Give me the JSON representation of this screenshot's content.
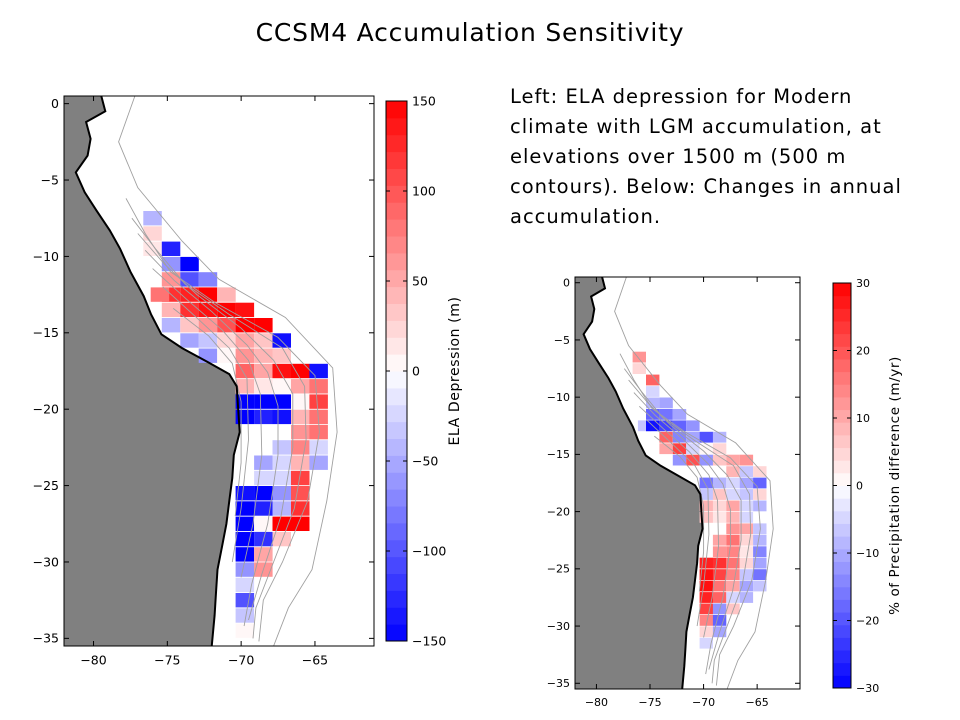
{
  "title": "CCSM4 Accumulation Sensitivity",
  "caption": "Left: ELA depression for Modern climate with LGM accumulation, at elevations over 1500 m (500 m contours). Below: Changes in annual accumulation.",
  "colors": {
    "land": "#808080",
    "ocean": "#ffffff",
    "contour": "#a0a0a0",
    "coast": "#000000",
    "high": "#ff0000",
    "mid": "#ffffff",
    "low": "#0000ff"
  },
  "chart_data": [
    {
      "type": "heatmap",
      "title": "",
      "xlabel": "",
      "ylabel": "",
      "colorbar_label": "ELA Depression (m)",
      "xlim": [
        -82,
        -61
      ],
      "ylim": [
        -35.5,
        0.5
      ],
      "xticks": [
        -80,
        -75,
        -70,
        -65
      ],
      "yticks": [
        0,
        -5,
        -10,
        -15,
        -20,
        -25,
        -30,
        -35
      ],
      "clim": [
        -150,
        150
      ],
      "colorbar_ticks": [
        150,
        100,
        50,
        0,
        -50,
        -100,
        -150
      ],
      "colorbar_tick_labels": [
        "150",
        "100",
        "50",
        "0",
        "−50",
        "−100",
        "−150"
      ],
      "cell_size_deg": [
        1.25,
        0.94
      ],
      "cells": [
        {
          "lon": -76.0,
          "lat": -7.5,
          "v": -40
        },
        {
          "lon": -76.0,
          "lat": -8.5,
          "v": 20
        },
        {
          "lon": -76.0,
          "lat": -9.5,
          "v": 15
        },
        {
          "lon": -74.75,
          "lat": -9.5,
          "v": -130
        },
        {
          "lon": -74.75,
          "lat": -10.5,
          "v": -60
        },
        {
          "lon": -74.75,
          "lat": -11.5,
          "v": 60
        },
        {
          "lon": -73.5,
          "lat": -10.5,
          "v": -150
        },
        {
          "lon": -73.5,
          "lat": -11.5,
          "v": -100
        },
        {
          "lon": -74.75,
          "lat": -12.5,
          "v": 120
        },
        {
          "lon": -73.5,
          "lat": -12.5,
          "v": 130
        },
        {
          "lon": -72.25,
          "lat": -12.5,
          "v": 150
        },
        {
          "lon": -72.25,
          "lat": -11.5,
          "v": -70
        },
        {
          "lon": -71.0,
          "lat": -12.5,
          "v": 40
        },
        {
          "lon": -75.5,
          "lat": -12.5,
          "v": 80
        },
        {
          "lon": -74.75,
          "lat": -13.5,
          "v": 40
        },
        {
          "lon": -73.5,
          "lat": -13.5,
          "v": 120
        },
        {
          "lon": -72.25,
          "lat": -13.5,
          "v": 140
        },
        {
          "lon": -71.0,
          "lat": -13.5,
          "v": 150
        },
        {
          "lon": -69.75,
          "lat": -13.5,
          "v": 140
        },
        {
          "lon": -74.75,
          "lat": -14.5,
          "v": -40
        },
        {
          "lon": -73.5,
          "lat": -14.5,
          "v": 30
        },
        {
          "lon": -72.25,
          "lat": -14.5,
          "v": 60
        },
        {
          "lon": -71.0,
          "lat": -14.5,
          "v": 100
        },
        {
          "lon": -69.75,
          "lat": -14.5,
          "v": 150
        },
        {
          "lon": -68.5,
          "lat": -14.5,
          "v": 150
        },
        {
          "lon": -73.5,
          "lat": -15.5,
          "v": -50
        },
        {
          "lon": -72.25,
          "lat": -15.5,
          "v": -30
        },
        {
          "lon": -71.0,
          "lat": -15.5,
          "v": 20
        },
        {
          "lon": -69.75,
          "lat": -15.5,
          "v": 50
        },
        {
          "lon": -68.5,
          "lat": -15.5,
          "v": 30
        },
        {
          "lon": -67.25,
          "lat": -15.5,
          "v": -140
        },
        {
          "lon": -72.25,
          "lat": -16.5,
          "v": -60
        },
        {
          "lon": -71.0,
          "lat": -16.5,
          "v": 0
        },
        {
          "lon": -69.75,
          "lat": -16.5,
          "v": 60
        },
        {
          "lon": -68.5,
          "lat": -16.5,
          "v": 40
        },
        {
          "lon": -67.25,
          "lat": -16.5,
          "v": 30
        },
        {
          "lon": -69.75,
          "lat": -17.5,
          "v": 90
        },
        {
          "lon": -68.5,
          "lat": -17.5,
          "v": 50
        },
        {
          "lon": -67.25,
          "lat": -17.5,
          "v": 140
        },
        {
          "lon": -66.0,
          "lat": -17.5,
          "v": 150
        },
        {
          "lon": -64.75,
          "lat": -17.5,
          "v": -140
        },
        {
          "lon": -69.75,
          "lat": -18.5,
          "v": 40
        },
        {
          "lon": -68.5,
          "lat": -18.5,
          "v": 10
        },
        {
          "lon": -67.25,
          "lat": -18.5,
          "v": 0
        },
        {
          "lon": -66.0,
          "lat": -18.5,
          "v": 50
        },
        {
          "lon": -64.75,
          "lat": -18.5,
          "v": 80
        },
        {
          "lon": -69.75,
          "lat": -19.5,
          "v": -150
        },
        {
          "lon": -68.5,
          "lat": -19.5,
          "v": -150
        },
        {
          "lon": -67.25,
          "lat": -19.5,
          "v": -150
        },
        {
          "lon": -66.0,
          "lat": -19.5,
          "v": 0
        },
        {
          "lon": -64.75,
          "lat": -19.5,
          "v": 110
        },
        {
          "lon": -69.75,
          "lat": -20.5,
          "v": -150
        },
        {
          "lon": -68.5,
          "lat": -20.5,
          "v": -130
        },
        {
          "lon": -67.25,
          "lat": -20.5,
          "v": -140
        },
        {
          "lon": -66.0,
          "lat": -20.5,
          "v": 40
        },
        {
          "lon": -64.75,
          "lat": -20.5,
          "v": 80
        },
        {
          "lon": -66.0,
          "lat": -21.5,
          "v": 60
        },
        {
          "lon": -64.75,
          "lat": -21.5,
          "v": 80
        },
        {
          "lon": -67.25,
          "lat": -22.5,
          "v": -30
        },
        {
          "lon": -66.0,
          "lat": -22.5,
          "v": 70
        },
        {
          "lon": -64.75,
          "lat": -22.5,
          "v": -20
        },
        {
          "lon": -68.5,
          "lat": -23.5,
          "v": -50
        },
        {
          "lon": -67.25,
          "lat": -23.5,
          "v": -20
        },
        {
          "lon": -66.0,
          "lat": -23.5,
          "v": 40
        },
        {
          "lon": -64.75,
          "lat": -23.5,
          "v": -50
        },
        {
          "lon": -68.5,
          "lat": -24.5,
          "v": -20
        },
        {
          "lon": -67.25,
          "lat": -24.5,
          "v": -20
        },
        {
          "lon": -66.0,
          "lat": -24.5,
          "v": 110
        },
        {
          "lon": -69.75,
          "lat": -25.5,
          "v": -140
        },
        {
          "lon": -68.5,
          "lat": -25.5,
          "v": -150
        },
        {
          "lon": -67.25,
          "lat": -25.5,
          "v": -60
        },
        {
          "lon": -66.0,
          "lat": -25.5,
          "v": 100
        },
        {
          "lon": -69.75,
          "lat": -26.5,
          "v": -150
        },
        {
          "lon": -68.5,
          "lat": -26.5,
          "v": -130
        },
        {
          "lon": -67.25,
          "lat": -26.5,
          "v": -40
        },
        {
          "lon": -66.0,
          "lat": -26.5,
          "v": 120
        },
        {
          "lon": -69.75,
          "lat": -27.5,
          "v": -150
        },
        {
          "lon": -68.5,
          "lat": -27.5,
          "v": 0
        },
        {
          "lon": -67.25,
          "lat": -27.5,
          "v": 150
        },
        {
          "lon": -66.0,
          "lat": -27.5,
          "v": 150
        },
        {
          "lon": -69.75,
          "lat": -28.5,
          "v": -150
        },
        {
          "lon": -68.5,
          "lat": -28.5,
          "v": -120
        },
        {
          "lon": -67.25,
          "lat": -28.5,
          "v": 30
        },
        {
          "lon": -69.75,
          "lat": -29.5,
          "v": -150
        },
        {
          "lon": -68.5,
          "lat": -29.5,
          "v": 50
        },
        {
          "lon": -69.75,
          "lat": -30.5,
          "v": -60
        },
        {
          "lon": -68.5,
          "lat": -30.5,
          "v": 60
        },
        {
          "lon": -69.75,
          "lat": -31.5,
          "v": -20
        },
        {
          "lon": -69.75,
          "lat": -32.5,
          "v": -100
        },
        {
          "lon": -69.75,
          "lat": -33.5,
          "v": -30
        },
        {
          "lon": -69.75,
          "lat": -34.5,
          "v": 0
        }
      ]
    },
    {
      "type": "heatmap",
      "title": "",
      "xlabel": "",
      "ylabel": "",
      "colorbar_label": "% of Precipitation difference (m/yr)",
      "xlim": [
        -82,
        -61
      ],
      "ylim": [
        -35.5,
        0.5
      ],
      "xticks": [
        -80,
        -75,
        -70,
        -65
      ],
      "yticks": [
        0,
        -5,
        -10,
        -15,
        -20,
        -25,
        -30,
        -35
      ],
      "clim": [
        -30,
        30
      ],
      "colorbar_ticks": [
        30,
        20,
        10,
        0,
        -10,
        -20,
        -30
      ],
      "colorbar_tick_labels": [
        "30",
        "20",
        "10",
        "0",
        "−10",
        "−20",
        "−30"
      ],
      "cell_size_deg": [
        1.25,
        0.94
      ],
      "cells": [
        {
          "lon": -76.0,
          "lat": -6.5,
          "v": 12
        },
        {
          "lon": -76.0,
          "lat": -7.5,
          "v": 4
        },
        {
          "lon": -74.75,
          "lat": -8.5,
          "v": 18
        },
        {
          "lon": -74.75,
          "lat": -9.5,
          "v": -4
        },
        {
          "lon": -73.5,
          "lat": -10.5,
          "v": -10
        },
        {
          "lon": -74.75,
          "lat": -10.5,
          "v": -8
        },
        {
          "lon": -74.75,
          "lat": -11.5,
          "v": -18
        },
        {
          "lon": -73.5,
          "lat": -11.5,
          "v": -16
        },
        {
          "lon": -72.25,
          "lat": -11.5,
          "v": -10
        },
        {
          "lon": -75.5,
          "lat": -12.5,
          "v": -6
        },
        {
          "lon": -74.75,
          "lat": -12.5,
          "v": -28
        },
        {
          "lon": -73.5,
          "lat": -12.5,
          "v": -22
        },
        {
          "lon": -72.25,
          "lat": -12.5,
          "v": -18
        },
        {
          "lon": -71.0,
          "lat": -12.5,
          "v": -12
        },
        {
          "lon": -73.5,
          "lat": -13.5,
          "v": 18
        },
        {
          "lon": -72.25,
          "lat": -13.5,
          "v": -14
        },
        {
          "lon": -71.0,
          "lat": -13.5,
          "v": -10
        },
        {
          "lon": -69.75,
          "lat": -13.5,
          "v": -20
        },
        {
          "lon": -68.5,
          "lat": -13.5,
          "v": -8
        },
        {
          "lon": -73.5,
          "lat": -14.5,
          "v": 10
        },
        {
          "lon": -72.25,
          "lat": -14.5,
          "v": 22
        },
        {
          "lon": -71.0,
          "lat": -14.5,
          "v": -4
        },
        {
          "lon": -69.75,
          "lat": -14.5,
          "v": 0
        },
        {
          "lon": -68.5,
          "lat": -14.5,
          "v": 4
        },
        {
          "lon": -72.25,
          "lat": -15.5,
          "v": -12
        },
        {
          "lon": -71.0,
          "lat": -15.5,
          "v": 20
        },
        {
          "lon": -69.75,
          "lat": -15.5,
          "v": -12
        },
        {
          "lon": -68.5,
          "lat": -15.5,
          "v": 6
        },
        {
          "lon": -67.25,
          "lat": -15.5,
          "v": 10
        },
        {
          "lon": -66.0,
          "lat": -15.5,
          "v": 12
        },
        {
          "lon": -67.25,
          "lat": -16.5,
          "v": 8
        },
        {
          "lon": -66.0,
          "lat": -16.5,
          "v": -6
        },
        {
          "lon": -64.75,
          "lat": -16.5,
          "v": 4
        },
        {
          "lon": -69.75,
          "lat": -17.5,
          "v": -16
        },
        {
          "lon": -68.5,
          "lat": -17.5,
          "v": -8
        },
        {
          "lon": -67.25,
          "lat": -17.5,
          "v": -4
        },
        {
          "lon": -66.0,
          "lat": -17.5,
          "v": -10
        },
        {
          "lon": -64.75,
          "lat": -17.5,
          "v": -18
        },
        {
          "lon": -69.75,
          "lat": -18.5,
          "v": -6
        },
        {
          "lon": -68.5,
          "lat": -18.5,
          "v": 6
        },
        {
          "lon": -67.25,
          "lat": -18.5,
          "v": -4
        },
        {
          "lon": -66.0,
          "lat": -18.5,
          "v": -6
        },
        {
          "lon": -64.75,
          "lat": -18.5,
          "v": 4
        },
        {
          "lon": -69.75,
          "lat": -19.5,
          "v": 8
        },
        {
          "lon": -68.5,
          "lat": -19.5,
          "v": 4
        },
        {
          "lon": -67.25,
          "lat": -19.5,
          "v": 10
        },
        {
          "lon": -66.0,
          "lat": -19.5,
          "v": -4
        },
        {
          "lon": -64.75,
          "lat": -19.5,
          "v": -8
        },
        {
          "lon": -69.75,
          "lat": -20.5,
          "v": 6
        },
        {
          "lon": -68.5,
          "lat": -20.5,
          "v": 2
        },
        {
          "lon": -67.25,
          "lat": -20.5,
          "v": 8
        },
        {
          "lon": -66.0,
          "lat": -20.5,
          "v": -4
        },
        {
          "lon": -67.25,
          "lat": -21.5,
          "v": 12
        },
        {
          "lon": -66.0,
          "lat": -21.5,
          "v": 10
        },
        {
          "lon": -64.75,
          "lat": -21.5,
          "v": -6
        },
        {
          "lon": -68.5,
          "lat": -22.5,
          "v": 10
        },
        {
          "lon": -67.25,
          "lat": -22.5,
          "v": 16
        },
        {
          "lon": -66.0,
          "lat": -22.5,
          "v": 4
        },
        {
          "lon": -64.75,
          "lat": -22.5,
          "v": -8
        },
        {
          "lon": -68.5,
          "lat": -23.5,
          "v": 12
        },
        {
          "lon": -67.25,
          "lat": -23.5,
          "v": 14
        },
        {
          "lon": -66.0,
          "lat": -23.5,
          "v": 2
        },
        {
          "lon": -64.75,
          "lat": -23.5,
          "v": -14
        },
        {
          "lon": -69.75,
          "lat": -24.5,
          "v": 26
        },
        {
          "lon": -68.5,
          "lat": -24.5,
          "v": 24
        },
        {
          "lon": -67.25,
          "lat": -24.5,
          "v": 16
        },
        {
          "lon": -66.0,
          "lat": -24.5,
          "v": 4
        },
        {
          "lon": -64.75,
          "lat": -24.5,
          "v": -10
        },
        {
          "lon": -69.75,
          "lat": -25.5,
          "v": 28
        },
        {
          "lon": -68.5,
          "lat": -25.5,
          "v": 22
        },
        {
          "lon": -67.25,
          "lat": -25.5,
          "v": 14
        },
        {
          "lon": -66.0,
          "lat": -25.5,
          "v": -6
        },
        {
          "lon": -64.75,
          "lat": -25.5,
          "v": -16
        },
        {
          "lon": -69.75,
          "lat": -26.5,
          "v": 28
        },
        {
          "lon": -68.5,
          "lat": -26.5,
          "v": 16
        },
        {
          "lon": -67.25,
          "lat": -26.5,
          "v": 10
        },
        {
          "lon": -66.0,
          "lat": -26.5,
          "v": -10
        },
        {
          "lon": -64.75,
          "lat": -26.5,
          "v": -6
        },
        {
          "lon": -69.75,
          "lat": -27.5,
          "v": 26
        },
        {
          "lon": -68.5,
          "lat": -27.5,
          "v": 18
        },
        {
          "lon": -67.25,
          "lat": -27.5,
          "v": -4
        },
        {
          "lon": -66.0,
          "lat": -27.5,
          "v": -8
        },
        {
          "lon": -69.75,
          "lat": -28.5,
          "v": 22
        },
        {
          "lon": -68.5,
          "lat": -28.5,
          "v": -12
        },
        {
          "lon": -67.25,
          "lat": -28.5,
          "v": 6
        },
        {
          "lon": -69.75,
          "lat": -29.5,
          "v": 14
        },
        {
          "lon": -68.5,
          "lat": -29.5,
          "v": -18
        },
        {
          "lon": -69.75,
          "lat": -30.5,
          "v": 4
        },
        {
          "lon": -68.5,
          "lat": -30.5,
          "v": -10
        },
        {
          "lon": -69.75,
          "lat": -31.5,
          "v": -4
        }
      ]
    }
  ]
}
